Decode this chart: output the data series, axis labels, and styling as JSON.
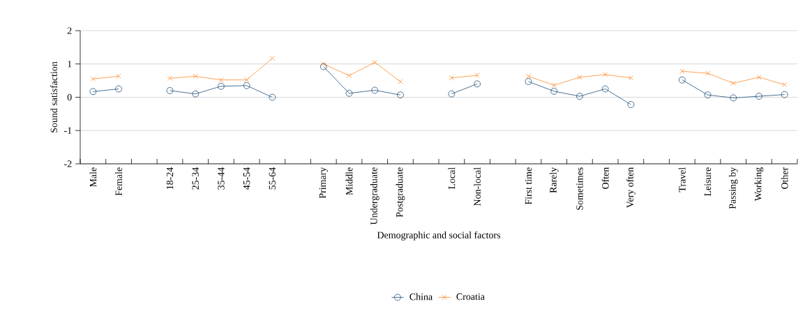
{
  "chart_data": {
    "type": "line",
    "xlabel": "Demographic and social factors",
    "ylabel": "Sound satisfaction",
    "categories": [
      "Male",
      "Female",
      null,
      "18-24",
      "25-34",
      "35-44",
      "45-54",
      "55-64",
      null,
      "Primary",
      "Middle",
      "Undergraduate",
      "Postgraduate",
      null,
      "Local",
      "Non-local",
      null,
      "First time",
      "Rarely",
      "Sometimes",
      "Often",
      "Very often",
      null,
      "Travel",
      "Leisure",
      "Passing by",
      "Working",
      "Other"
    ],
    "series": [
      {
        "name": "China",
        "color": "#1f4e79",
        "marker": "circle",
        "values": [
          0.17,
          0.25,
          null,
          0.2,
          0.1,
          0.33,
          0.35,
          0.0,
          null,
          0.92,
          0.12,
          0.21,
          0.07,
          null,
          0.1,
          0.4,
          null,
          0.47,
          0.18,
          0.03,
          0.25,
          -0.22,
          null,
          0.52,
          0.07,
          -0.02,
          0.03,
          0.08
        ]
      },
      {
        "name": "Croatia",
        "color": "#ff8a2b",
        "marker": "cross",
        "values": [
          0.55,
          0.63,
          null,
          0.57,
          0.63,
          0.52,
          0.52,
          1.17,
          null,
          1.0,
          0.65,
          1.05,
          0.47,
          null,
          0.58,
          0.66,
          null,
          0.63,
          0.36,
          0.6,
          0.68,
          0.58,
          null,
          0.78,
          0.72,
          0.42,
          0.6,
          0.38
        ]
      }
    ],
    "ylim": [
      -2,
      2
    ],
    "yticks": [
      -2,
      -1,
      0,
      1,
      2
    ],
    "grid": "y",
    "legend": "bottom",
    "line_style": "solid"
  }
}
